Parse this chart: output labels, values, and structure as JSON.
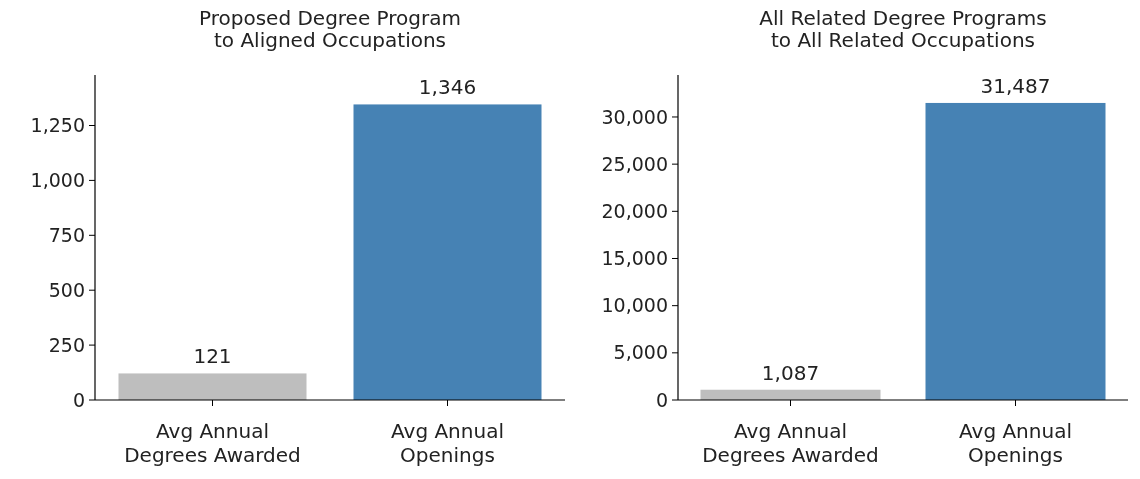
{
  "chart_data": [
    {
      "type": "bar",
      "title": "Proposed Degree Program\nto Aligned Occupations",
      "categories": [
        "Avg Annual\nDegrees Awarded",
        "Avg Annual\nOpenings"
      ],
      "values": [
        121,
        1346
      ],
      "value_labels": [
        "121",
        "1,346"
      ],
      "colors": [
        "#bebebe",
        "#4682b4"
      ],
      "ylim": [
        0,
        1480
      ],
      "yticks": [
        0,
        250,
        500,
        750,
        {
          "value": 1000,
          "label": "1,000"
        },
        {
          "value": 1250,
          "label": "1,250"
        }
      ]
    },
    {
      "type": "bar",
      "title": "All Related Degree Programs\nto All Related Occupations",
      "categories": [
        "Avg Annual\nDegrees Awarded",
        "Avg Annual\nOpenings"
      ],
      "values": [
        1087,
        31487
      ],
      "value_labels": [
        "1,087",
        "31,487"
      ],
      "colors": [
        "#bebebe",
        "#4682b4"
      ],
      "ylim": [
        0,
        34450
      ],
      "yticks": [
        0,
        {
          "value": 5000,
          "label": "5,000"
        },
        {
          "value": 10000,
          "label": "10,000"
        },
        {
          "value": 15000,
          "label": "15,000"
        },
        {
          "value": 20000,
          "label": "20,000"
        },
        {
          "value": 25000,
          "label": "25,000"
        },
        {
          "value": 30000,
          "label": "30,000"
        }
      ]
    }
  ]
}
